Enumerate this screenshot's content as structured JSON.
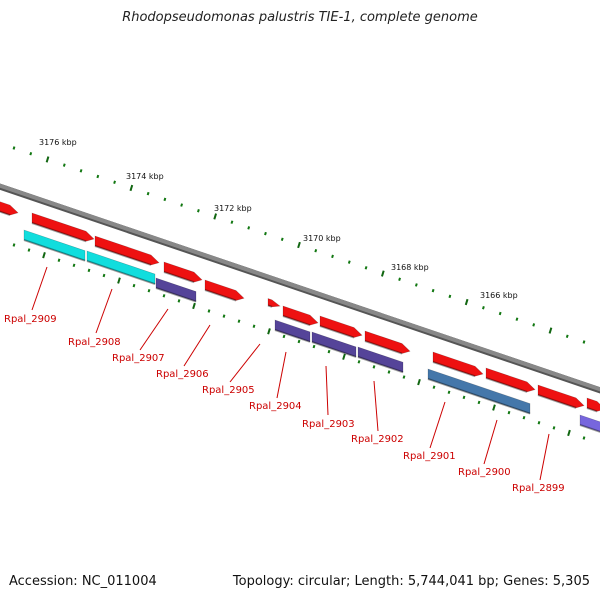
{
  "title": "Rhodopseudomonas palustris TIE-1, complete genome",
  "accession_text": "Accession: NC_011004",
  "topology_text": "Topology: circular; Length: 5,744,041 bp; Genes: 5,305",
  "colors": {
    "backbone": "#888888",
    "forward_gene": "#ee1111",
    "reverse_cyan": "#11dddd",
    "reverse_purple": "#554499",
    "reverse_steel": "#4477aa",
    "reverse_violet": "#7766dd",
    "tick_major": "#116611",
    "tick_minor": "#117711",
    "gene_label": "#cc0000",
    "label_line": "#cc0000"
  },
  "kbp_labels": [
    "3176 kbp",
    "3174 kbp",
    "3172 kbp",
    "3170 kbp",
    "3168 kbp",
    "3166 kbp"
  ],
  "gene_labels": [
    "Rpal_2909",
    "Rpal_2908",
    "Rpal_2907",
    "Rpal_2906",
    "Rpal_2905",
    "Rpal_2904",
    "Rpal_2903",
    "Rpal_2902",
    "Rpal_2901",
    "Rpal_2900",
    "Rpal_2899"
  ]
}
